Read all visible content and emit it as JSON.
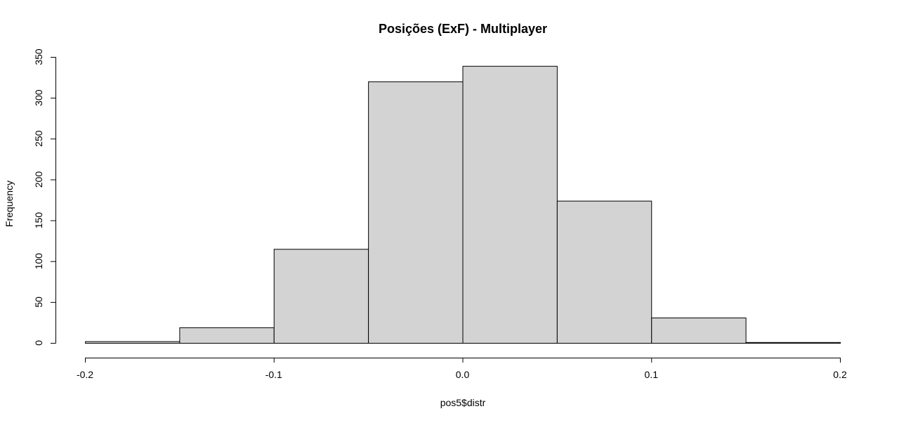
{
  "chart_data": {
    "type": "bar",
    "title": "Posições (ExF) - Multiplayer",
    "xlabel": "pos5$distr",
    "ylabel": "Frequency",
    "bin_edges": [
      -0.2,
      -0.15,
      -0.1,
      -0.05,
      0.0,
      0.05,
      0.1,
      0.15,
      0.2
    ],
    "values": [
      2,
      19,
      115,
      320,
      339,
      174,
      31,
      1
    ],
    "xlim": [
      -0.2,
      0.2
    ],
    "ylim": [
      0,
      350
    ],
    "x_ticks": [
      -0.2,
      -0.1,
      0.0,
      0.1,
      0.2
    ],
    "x_tick_labels": [
      "-0.2",
      "-0.1",
      "0.0",
      "0.1",
      "0.2"
    ],
    "y_ticks": [
      0,
      50,
      100,
      150,
      200,
      250,
      300,
      350
    ],
    "y_tick_labels": [
      "0",
      "50",
      "100",
      "150",
      "200",
      "250",
      "300",
      "350"
    ],
    "bar_fill": "#d3d3d3",
    "bar_stroke": "#000000",
    "grid": false
  }
}
